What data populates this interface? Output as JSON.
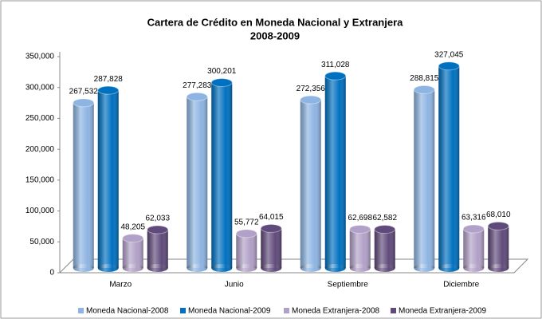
{
  "chart_data": {
    "type": "bar",
    "title": "Cartera de Crédito en Moneda Nacional y Extranjera",
    "subtitle": "2008-2009",
    "categories": [
      "Marzo",
      "Junio",
      "Septiembre",
      "Diciembre"
    ],
    "series": [
      {
        "name": "Moneda Nacional-2008",
        "color": "#8db4e2",
        "values": [
          267532,
          277283,
          272356,
          288815
        ],
        "value_labels": [
          "267,532",
          "277,283",
          "272,356",
          "288,815"
        ]
      },
      {
        "name": "Moneda Nacional-2009",
        "color": "#0070c0",
        "values": [
          287828,
          300201,
          311028,
          327045
        ],
        "value_labels": [
          "287,828",
          "300,201",
          "311,028",
          "327,045"
        ]
      },
      {
        "name": "Moneda Extranjera-2008",
        "color": "#b1a0c7",
        "values": [
          48205,
          55772,
          62698,
          63316
        ],
        "value_labels": [
          "48,205",
          "55,772",
          "62,698",
          "63,316"
        ]
      },
      {
        "name": "Moneda Extranjera-2009",
        "color": "#604a7b",
        "values": [
          62033,
          64015,
          62582,
          68010
        ],
        "value_labels": [
          "62,033",
          "64,015",
          "62,582",
          "68,010"
        ]
      }
    ],
    "ylim": [
      0,
      350000
    ],
    "yticks": [
      0,
      {
        "value": 50000,
        "label": "50,000"
      },
      {
        "value": 100000,
        "label": "100,000"
      },
      {
        "value": 150000,
        "label": "150,000"
      },
      {
        "value": 200000,
        "label": "200,000"
      },
      {
        "value": 250000,
        "label": "250,000"
      },
      {
        "value": 300000,
        "label": "300,000"
      },
      {
        "value": 350000,
        "label": "350,000"
      }
    ],
    "grid": false,
    "legend": "bottom"
  }
}
